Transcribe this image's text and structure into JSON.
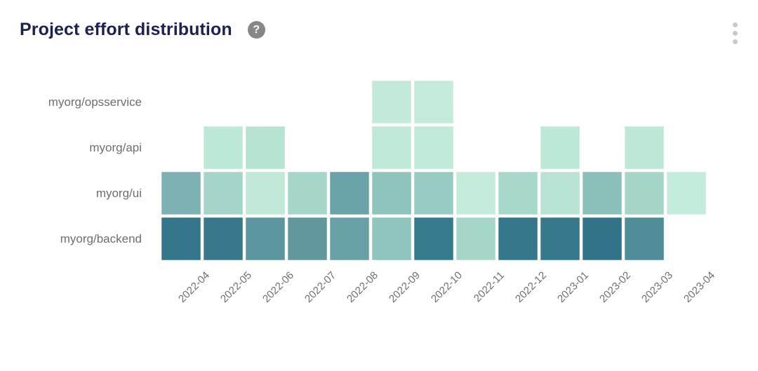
{
  "header": {
    "title": "Project effort distribution",
    "help_icon_glyph": "?"
  },
  "colors": {
    "background": "#ffffff",
    "title_text": "#1b2150",
    "axis_label_text": "#6e6e6e",
    "help_icon_bg": "#878787",
    "help_icon_glyph": "#ffffff",
    "menu_dots": "#c9c9c9"
  },
  "chart_data": {
    "type": "heatmap",
    "title": "Project effort distribution",
    "x_categories": [
      "2022-04",
      "2022-05",
      "2022-06",
      "2022-07",
      "2022-08",
      "2022-09",
      "2022-10",
      "2022-11",
      "2022-12",
      "2023-01",
      "2023-02",
      "2023-03",
      "2023-04"
    ],
    "y_categories": [
      "myorg/opsservice",
      "myorg/api",
      "myorg/ui",
      "myorg/backend"
    ],
    "grid": false,
    "legend_position": "none",
    "color_scale": {
      "min_color": "#c6eedd",
      "max_color": "#2f7389",
      "note": "lighter = less effort, darker = more effort; no numeric labels shown"
    },
    "cells": [
      [
        null,
        null,
        null,
        null,
        null,
        "#c3ead9",
        "#c4ebda",
        null,
        null,
        null,
        null,
        null,
        null
      ],
      [
        null,
        "#bee8d7",
        "#b8e3d3",
        null,
        null,
        "#c0e9d8",
        "#c2ead9",
        null,
        null,
        "#bee8d7",
        null,
        "#bfe8d7",
        null
      ],
      [
        "#7db1b3",
        "#a4d4ca",
        "#c2e8d8",
        "#a5d6ca",
        "#6ba3ab",
        "#8fc4bd",
        "#98ccc3",
        "#c5ecdb",
        "#a8d8cc",
        "#b9e3d4",
        "#8abfba",
        "#a5d5c9",
        "#c4ecdc"
      ],
      [
        "#33758a",
        "#39788b",
        "#5c96a1",
        "#62979e",
        "#68a0a8",
        "#8fc5bd",
        "#357b8c",
        "#a5d6c9",
        "#35788b",
        "#35798b",
        "#337389",
        "#4f8d99",
        null
      ]
    ],
    "intensity_estimate": [
      [
        null,
        null,
        null,
        null,
        null,
        0.15,
        0.15,
        null,
        null,
        null,
        null,
        null,
        null
      ],
      [
        null,
        0.15,
        0.18,
        null,
        null,
        0.15,
        0.15,
        null,
        null,
        0.15,
        null,
        0.15,
        null
      ],
      [
        0.55,
        0.32,
        0.17,
        0.31,
        0.62,
        0.45,
        0.4,
        0.13,
        0.3,
        0.22,
        0.48,
        0.32,
        0.14
      ],
      [
        0.92,
        0.88,
        0.68,
        0.66,
        0.62,
        0.45,
        0.9,
        0.3,
        0.9,
        0.9,
        0.92,
        0.78,
        null
      ]
    ]
  }
}
